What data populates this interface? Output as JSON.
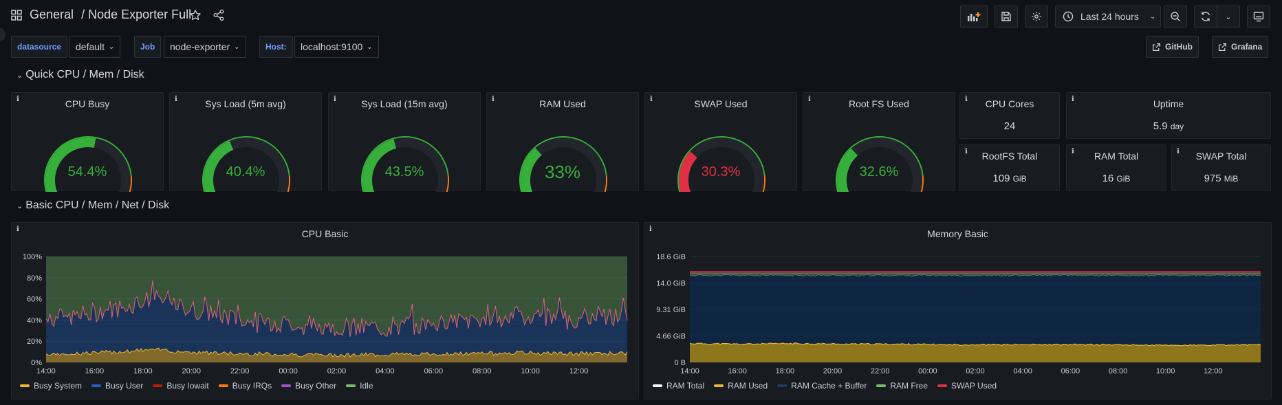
{
  "header": {
    "folder": "General",
    "separator": "/",
    "dashboard_title": "Node Exporter Full",
    "time_range": "Last 24 hours"
  },
  "variables": [
    {
      "label": "datasource",
      "value": "default"
    },
    {
      "label": "Job",
      "value": "node-exporter"
    },
    {
      "label": "Host:",
      "value": "localhost:9100"
    }
  ],
  "links": {
    "github": "GitHub",
    "grafana": "Grafana"
  },
  "rows": {
    "quick": "Quick CPU / Mem / Disk",
    "basic": "Basic CPU / Mem / Net / Disk"
  },
  "gauges": [
    {
      "title": "CPU Busy",
      "value": "54.4%",
      "fraction": 0.544,
      "color": "#37b03b"
    },
    {
      "title": "Sys Load (5m avg)",
      "value": "40.4%",
      "fraction": 0.404,
      "color": "#37b03b"
    },
    {
      "title": "Sys Load (15m avg)",
      "value": "43.5%",
      "fraction": 0.435,
      "color": "#37b03b"
    },
    {
      "title": "RAM Used",
      "value": "33%",
      "fraction": 0.33,
      "color": "#37b03b"
    },
    {
      "title": "SWAP Used",
      "value": "30.3%",
      "fraction": 0.303,
      "color": "#e02f44"
    },
    {
      "title": "Root FS Used",
      "value": "32.6%",
      "fraction": 0.326,
      "color": "#37b03b"
    }
  ],
  "stats": {
    "cpu_cores": {
      "title": "CPU Cores",
      "value": "24",
      "unit": ""
    },
    "uptime": {
      "title": "Uptime",
      "value": "5.9",
      "unit": "day"
    },
    "rootfs_total": {
      "title": "RootFS Total",
      "value": "109",
      "unit": "GiB"
    },
    "ram_total": {
      "title": "RAM Total",
      "value": "16",
      "unit": "GiB"
    },
    "swap_total": {
      "title": "SWAP Total",
      "value": "975",
      "unit": "MiB"
    }
  },
  "colors": {
    "green": "#37b03b",
    "red": "#e02f44",
    "orange": "#ff780a",
    "busy_system": "#eab839",
    "busy_user": "#1f60c4",
    "busy_iowait": "#bf1b00",
    "busy_irqs": "#ff780a",
    "busy_other": "#a352cc",
    "idle": "#73bf69"
  },
  "chart_data": [
    {
      "type": "area",
      "title": "CPU Basic",
      "ylim": [
        0,
        100
      ],
      "y_ticks": [
        "100%",
        "80%",
        "60%",
        "40%",
        "20%",
        "0%"
      ],
      "x_ticks": [
        "14:00",
        "16:00",
        "18:00",
        "20:00",
        "22:00",
        "00:00",
        "02:00",
        "04:00",
        "06:00",
        "08:00",
        "10:00",
        "12:00"
      ],
      "series": [
        {
          "name": "Busy System",
          "color": "#eab839",
          "values": [
            8,
            9,
            12,
            9,
            8,
            7,
            7,
            8,
            8,
            9,
            8,
            9
          ]
        },
        {
          "name": "Busy User",
          "color": "#1f60c4",
          "values": [
            32,
            38,
            48,
            38,
            30,
            28,
            25,
            27,
            32,
            35,
            33,
            36
          ]
        },
        {
          "name": "Busy Iowait",
          "color": "#bf1b00",
          "values": [
            0,
            0,
            0,
            0,
            0,
            0,
            0,
            0,
            0,
            0,
            0,
            0
          ]
        },
        {
          "name": "Busy IRQs",
          "color": "#ff780a",
          "values": [
            0,
            0,
            0,
            0,
            0,
            0,
            0,
            0,
            0,
            0,
            0,
            0
          ]
        },
        {
          "name": "Busy Other",
          "color": "#a352cc",
          "values": [
            0,
            0,
            0,
            0,
            0,
            0,
            0,
            0,
            0,
            0,
            0,
            0
          ]
        },
        {
          "name": "Idle",
          "color": "#73bf69",
          "values": [
            60,
            53,
            40,
            53,
            62,
            65,
            68,
            65,
            60,
            56,
            59,
            55
          ]
        }
      ]
    },
    {
      "type": "area",
      "title": "Memory Basic",
      "ylim": [
        0,
        18.6
      ],
      "y_ticks": [
        "18.6 GiB",
        "14.0 GiB",
        "9.31 GiB",
        "4.66 GiB",
        "0 B"
      ],
      "x_ticks": [
        "14:00",
        "16:00",
        "18:00",
        "20:00",
        "22:00",
        "00:00",
        "02:00",
        "04:00",
        "06:00",
        "08:00",
        "10:00",
        "12:00"
      ],
      "series": [
        {
          "name": "RAM Total",
          "color": "#ffffff",
          "values": [
            15.6,
            15.6,
            15.6,
            15.6,
            15.6,
            15.6,
            15.6,
            15.6,
            15.6,
            15.6,
            15.6,
            15.6
          ]
        },
        {
          "name": "RAM Used",
          "color": "#eab839",
          "values": [
            3.3,
            3.2,
            3.3,
            3.2,
            3.2,
            3.1,
            3.1,
            3.1,
            3.1,
            3.0,
            3.0,
            3.1
          ]
        },
        {
          "name": "RAM Cache + Buffer",
          "color": "#052b51",
          "values": [
            12.0,
            12.1,
            12.0,
            12.1,
            12.1,
            12.2,
            12.2,
            12.2,
            12.2,
            12.3,
            12.3,
            12.2
          ]
        },
        {
          "name": "RAM Free",
          "color": "#73bf69",
          "values": [
            0.3,
            0.3,
            0.3,
            0.3,
            0.3,
            0.3,
            0.3,
            0.3,
            0.3,
            0.3,
            0.3,
            0.3
          ]
        },
        {
          "name": "SWAP Used",
          "color": "#e02f44",
          "values": [
            0.3,
            0.3,
            0.3,
            0.3,
            0.3,
            0.3,
            0.3,
            0.3,
            0.3,
            0.3,
            0.3,
            0.3
          ]
        }
      ]
    }
  ]
}
